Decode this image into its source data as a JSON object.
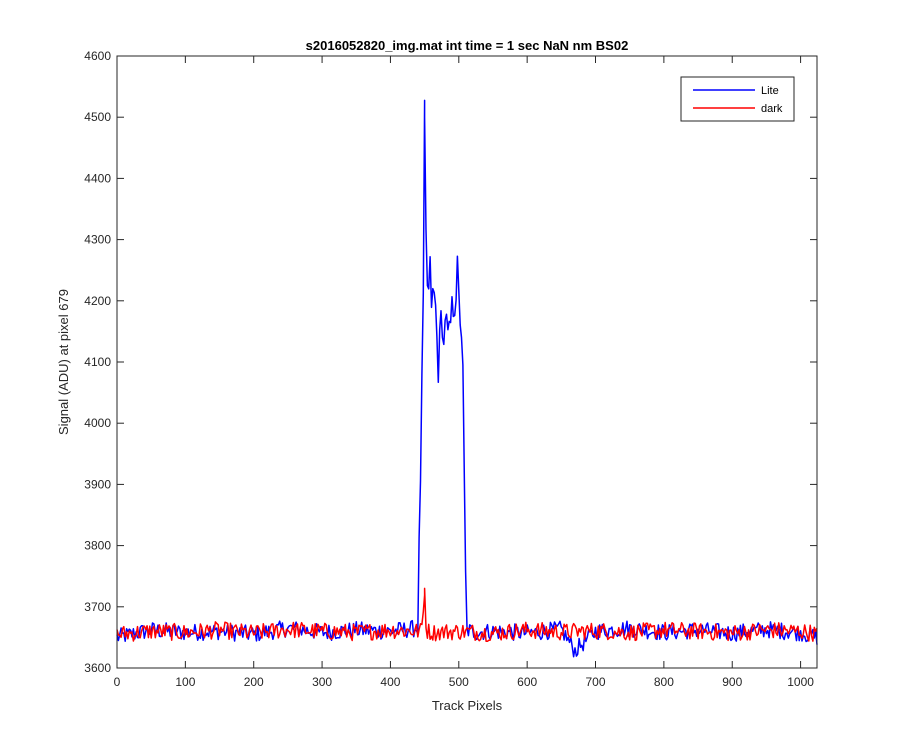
{
  "chart_data": {
    "type": "line",
    "title": "s2016052820_img.mat int time = 1 sec  NaN nm BS02",
    "xlabel": "Track Pixels",
    "ylabel": "Signal (ADU) at pixel 679",
    "xlim": [
      0,
      1024
    ],
    "ylim": [
      3600,
      4600
    ],
    "x_ticks": [
      "0",
      "100",
      "200",
      "300",
      "400",
      "500",
      "600",
      "700",
      "800",
      "900",
      "1000"
    ],
    "y_ticks": [
      "3600",
      "3700",
      "3800",
      "3900",
      "4000",
      "4100",
      "4200",
      "4300",
      "4400",
      "4500",
      "4600"
    ],
    "grid": false,
    "legend_position": "top-right",
    "series": [
      {
        "name": "Lite",
        "color": "#0000ff",
        "x": [
          0,
          50,
          100,
          150,
          200,
          250,
          300,
          350,
          400,
          440,
          445,
          448,
          450,
          452,
          455,
          458,
          460,
          465,
          470,
          475,
          478,
          480,
          485,
          490,
          495,
          498,
          500,
          503,
          505,
          507,
          509,
          512,
          515,
          520,
          550,
          600,
          650,
          670,
          700,
          750,
          800,
          850,
          900,
          950,
          1000,
          1024
        ],
        "y": [
          3650,
          3662,
          3658,
          3660,
          3655,
          3665,
          3658,
          3662,
          3660,
          3665,
          3980,
          4200,
          4500,
          4300,
          4190,
          4250,
          4200,
          4210,
          4090,
          4190,
          4120,
          4180,
          4130,
          4185,
          4200,
          4250,
          4200,
          4160,
          4140,
          4010,
          3790,
          3660,
          3662,
          3658,
          3660,
          3657,
          3663,
          3628,
          3660,
          3665,
          3658,
          3662,
          3657,
          3663,
          3658,
          3650
        ]
      },
      {
        "name": "dark",
        "color": "#ff0000",
        "x": [
          0,
          50,
          100,
          150,
          200,
          250,
          300,
          350,
          400,
          445,
          448,
          450,
          452,
          455,
          460,
          500,
          550,
          600,
          650,
          700,
          750,
          800,
          850,
          900,
          950,
          1000,
          1024
        ],
        "y": [
          3655,
          3660,
          3658,
          3662,
          3657,
          3663,
          3660,
          3658,
          3662,
          3660,
          3690,
          3730,
          3665,
          3660,
          3658,
          3660,
          3657,
          3662,
          3659,
          3661,
          3658,
          3662,
          3660,
          3657,
          3662,
          3660,
          3656
        ]
      }
    ]
  }
}
